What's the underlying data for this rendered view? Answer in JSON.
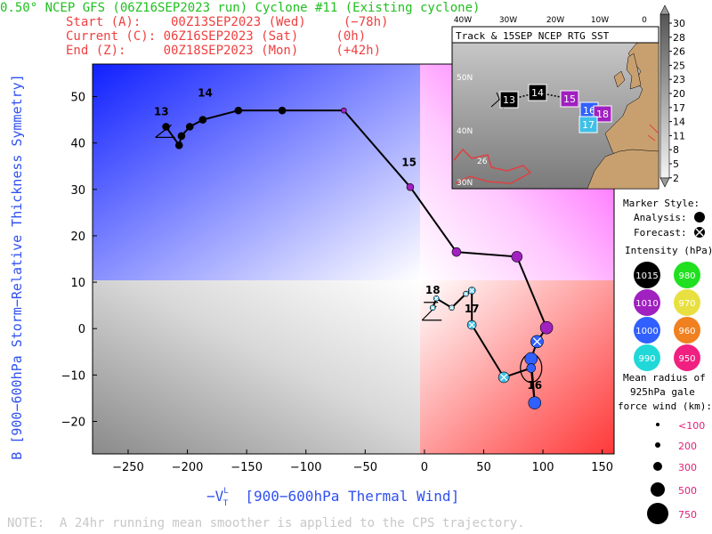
{
  "header": {
    "title": "0.50° NCEP GFS (06Z16SEP2023 run) Cyclone #11 (Existing cyclone)",
    "start": "Start (A):    00Z13SEP2023 (Wed)     (−78h)",
    "current": "Current (C): 06Z16SEP2023 (Sat)     (0h)",
    "end": "End (Z):     00Z18SEP2023 (Mon)     (+42h)"
  },
  "note": "NOTE:  A 24hr running mean smoother is applied to the CPS trajectory.",
  "colors": {
    "title": "#20c020",
    "dates": "#f04040",
    "axis_label": "#3050f0",
    "track": "#000000",
    "cold_core": "#0000ff",
    "warm_core": "#ff4040"
  },
  "chart_data": {
    "type": "scatter",
    "xlabel": "−V",
    "xlabel_sup": "L",
    "xlabel_sub": "T",
    "xlabel_rest": "  [900−600hPa Thermal Wind]",
    "ylabel": "B [900−600hPa Storm−Relative Thickness Symmetry]",
    "xlim": [
      -280,
      160
    ],
    "ylim": [
      -27,
      57
    ],
    "xticks": [
      -250,
      -200,
      -150,
      -100,
      -50,
      0,
      50,
      100,
      150
    ],
    "yticks": [
      -20,
      -10,
      0,
      10,
      20,
      30,
      40,
      50
    ],
    "trajectory": [
      {
        "x": -218,
        "y": 43.5,
        "color": "#000000",
        "marker": "analysis",
        "size": 3
      },
      {
        "x": -207,
        "y": 39.5,
        "color": "#000000",
        "marker": "analysis",
        "size": 3
      },
      {
        "x": -205,
        "y": 41.5,
        "color": "#000000",
        "marker": "analysis",
        "size": 3
      },
      {
        "x": -198,
        "y": 43.5,
        "color": "#000000",
        "marker": "analysis",
        "size": 3
      },
      {
        "x": -187,
        "y": 45,
        "color": "#000000",
        "marker": "analysis",
        "size": 3
      },
      {
        "x": -157,
        "y": 47,
        "color": "#000000",
        "marker": "analysis",
        "size": 3
      },
      {
        "x": -120,
        "y": 47,
        "color": "#000000",
        "marker": "analysis",
        "size": 3
      },
      {
        "x": -68,
        "y": 47,
        "color": "#a020c0",
        "marker": "analysis",
        "size": 2
      },
      {
        "x": -12,
        "y": 30.5,
        "color": "#a020c0",
        "marker": "analysis",
        "size": 3
      },
      {
        "x": 27,
        "y": 16.5,
        "color": "#a020c0",
        "marker": "analysis",
        "size": 4
      },
      {
        "x": 78,
        "y": 15.5,
        "color": "#a020c0",
        "marker": "analysis",
        "size": 5
      },
      {
        "x": 103,
        "y": 0.2,
        "color": "#a020c0",
        "marker": "analysis",
        "size": 6
      },
      {
        "x": 95,
        "y": -2.8,
        "color": "#3060ff",
        "marker": "forecast",
        "size": 6
      },
      {
        "x": 90,
        "y": -6.5,
        "color": "#3060ff",
        "marker": "analysis",
        "size": 6
      },
      {
        "x": 93,
        "y": -16,
        "color": "#3060ff",
        "marker": "analysis",
        "size": 6
      },
      {
        "x": 90,
        "y": -8.5,
        "color": "#3060ff",
        "marker": "analysis",
        "size": 4
      },
      {
        "x": 67,
        "y": -10.5,
        "color": "#40c0e8",
        "marker": "forecast",
        "size": 5
      },
      {
        "x": 40,
        "y": 0.8,
        "color": "#40c0e8",
        "marker": "forecast",
        "size": 4
      },
      {
        "x": 40,
        "y": 8.2,
        "color": "#40c0e8",
        "marker": "forecast",
        "size": 3
      },
      {
        "x": 35,
        "y": 7.5,
        "color": "#40c0e8",
        "marker": "forecast",
        "size": 2
      },
      {
        "x": 23,
        "y": 4.5,
        "color": "#40c0e8",
        "marker": "forecast",
        "size": 2
      },
      {
        "x": 10,
        "y": 6.5,
        "color": "#40c0e8",
        "marker": "forecast",
        "size": 2
      },
      {
        "x": 7,
        "y": 4.5,
        "color": "#40c0e8",
        "marker": "forecast",
        "size": 2
      }
    ],
    "day_labels": [
      {
        "text": "13",
        "x": -222,
        "y": 46
      },
      {
        "text": "14",
        "x": -185,
        "y": 50
      },
      {
        "text": "15",
        "x": -13,
        "y": 35
      },
      {
        "text": "16",
        "x": 93,
        "y": -13
      },
      {
        "text": "17",
        "x": 40,
        "y": 3.5
      },
      {
        "text": "18",
        "x": 7,
        "y": 7.5
      }
    ],
    "inset_map": {
      "title": "Track & 15SEP NCEP RTG SST",
      "lon_labels": [
        "40W",
        "30W",
        "20W",
        "10W",
        "0"
      ],
      "lat_labels": [
        "50N",
        "40N",
        "30N"
      ],
      "sst_label": "26",
      "track_labels": [
        {
          "text": "13",
          "color": "#000000"
        },
        {
          "text": "14",
          "color": "#000000"
        },
        {
          "text": "15",
          "color": "#a020c0"
        },
        {
          "text": "16",
          "color": "#3060ff"
        },
        {
          "text": "18",
          "color": "#a020c0"
        },
        {
          "text": "17",
          "color": "#40c0e8"
        }
      ],
      "colorbar": [
        "30",
        "28",
        "26",
        "25",
        "23",
        "20",
        "17",
        "14",
        "11",
        "8",
        "5",
        "2"
      ]
    },
    "marker_style": {
      "title": "Marker Style:",
      "analysis": "Analysis:",
      "forecast": "Forecast:"
    },
    "intensity": {
      "title": "Intensity (hPa):",
      "items": [
        {
          "label": "1015",
          "color": "#000000",
          "text_color": "#ffffff"
        },
        {
          "label": "980",
          "color": "#20e020",
          "text_color": "#ffffff"
        },
        {
          "label": "1010",
          "color": "#a020c0",
          "text_color": "#ffffff"
        },
        {
          "label": "970",
          "color": "#e8e040",
          "text_color": "#ffffff"
        },
        {
          "label": "1000",
          "color": "#3060ff",
          "text_color": "#ffffff"
        },
        {
          "label": "960",
          "color": "#f08020",
          "text_color": "#ffffff"
        },
        {
          "label": "990",
          "color": "#20d8d8",
          "text_color": "#ffffff"
        },
        {
          "label": "950",
          "color": "#f02080",
          "text_color": "#ffffff"
        }
      ]
    },
    "radius_legend": {
      "title": [
        "Mean radius of",
        "925hPa gale",
        "force wind (km):"
      ],
      "items": [
        "<100",
        "200",
        "300",
        "500",
        "750"
      ]
    }
  }
}
